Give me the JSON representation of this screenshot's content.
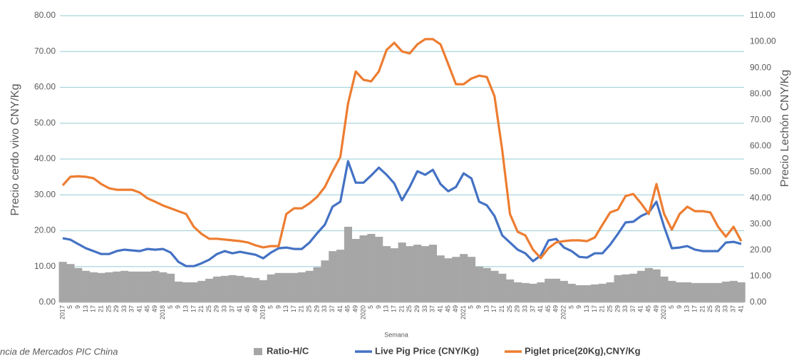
{
  "chart_data": {
    "type": "combo",
    "y_label": "Precio cerdo vivo CNY/Kg",
    "y2_label": "Precio Lechón CNY/Kg",
    "x_label": "Semana",
    "source": "ncia de Mercados PIC China",
    "categories": [
      "2017",
      "5",
      "9",
      "13",
      "17",
      "21",
      "25",
      "29",
      "33",
      "37",
      "41",
      "45",
      "49",
      "2018",
      "5",
      "9",
      "13",
      "17",
      "21",
      "25",
      "29",
      "33",
      "37",
      "41",
      "45",
      "49",
      "2019",
      "5",
      "9",
      "13",
      "17",
      "21",
      "25",
      "29",
      "33",
      "37",
      "41",
      "45",
      "49",
      "2020",
      "5",
      "9",
      "13",
      "17",
      "21",
      "25",
      "29",
      "33",
      "37",
      "41",
      "45",
      "49",
      "2021",
      "5",
      "9",
      "13",
      "17",
      "21",
      "25",
      "29",
      "33",
      "37",
      "41",
      "45",
      "49",
      "2022",
      "5",
      "9",
      "13",
      "17",
      "21",
      "25",
      "29",
      "33",
      "37",
      "41",
      "45",
      "49",
      "2023",
      "5",
      "9",
      "13",
      "17",
      "21",
      "25",
      "29",
      "33",
      "37",
      "41"
    ],
    "series": [
      {
        "name": "Ratio-H/C",
        "type": "area",
        "color": "#a6a6a6",
        "values": [
          11.3,
          10.7,
          9.6,
          8.8,
          8.4,
          8.2,
          8.4,
          8.6,
          8.8,
          8.6,
          8.6,
          8.6,
          8.8,
          8.4,
          8.0,
          5.8,
          5.6,
          5.6,
          6.0,
          6.6,
          7.2,
          7.4,
          7.6,
          7.4,
          7.0,
          6.8,
          6.2,
          7.8,
          8.2,
          8.2,
          8.2,
          8.4,
          8.8,
          9.8,
          11.7,
          14.3,
          14.7,
          21.1,
          17.7,
          18.7,
          19.1,
          18.3,
          15.7,
          15.1,
          16.7,
          15.7,
          16.1,
          15.7,
          16.1,
          13.1,
          12.3,
          12.7,
          13.5,
          12.7,
          10.0,
          9.6,
          8.8,
          8.0,
          6.4,
          5.6,
          5.4,
          5.2,
          5.6,
          6.6,
          6.6,
          6.0,
          5.2,
          4.8,
          4.8,
          5.0,
          5.2,
          5.6,
          7.6,
          7.8,
          8.0,
          8.8,
          9.6,
          9.2,
          7.2,
          6.0,
          5.6,
          5.6,
          5.4,
          5.4,
          5.4,
          5.4,
          5.8,
          6.0,
          5.6
        ]
      },
      {
        "name": "Live Pig Price (CNY/Kg)",
        "type": "line",
        "color": "#4472c4",
        "values": [
          17.9,
          17.5,
          16.3,
          15.1,
          14.3,
          13.5,
          13.5,
          14.3,
          14.7,
          14.5,
          14.3,
          14.9,
          14.7,
          14.9,
          13.9,
          11.3,
          10.1,
          10.1,
          10.9,
          11.9,
          13.5,
          14.3,
          13.7,
          14.1,
          13.7,
          13.3,
          12.3,
          13.9,
          15.1,
          15.3,
          14.9,
          14.9,
          16.7,
          19.3,
          21.7,
          26.7,
          28.1,
          39.4,
          33.4,
          33.4,
          35.4,
          37.6,
          35.6,
          33.2,
          28.5,
          32.2,
          36.6,
          35.6,
          37.0,
          33.0,
          31.0,
          32.2,
          36.0,
          34.6,
          28.1,
          27.1,
          24.1,
          18.7,
          16.7,
          14.7,
          13.7,
          11.5,
          13.1,
          17.3,
          17.7,
          15.3,
          14.3,
          12.7,
          12.5,
          13.7,
          13.7,
          16.1,
          19.1,
          22.3,
          22.5,
          24.1,
          25.1,
          28.1,
          21.1,
          15.1,
          15.3,
          15.7,
          14.7,
          14.3,
          14.3,
          14.3,
          16.7,
          16.9,
          16.3
        ]
      },
      {
        "name": "Piglet price(20Kg),CNY/Kg",
        "type": "line",
        "axis": "y2",
        "color": "#ed7d31",
        "values": [
          44.9,
          48.2,
          48.4,
          48.2,
          47.6,
          45.4,
          43.8,
          43.2,
          43.2,
          43.2,
          42.1,
          39.9,
          38.6,
          37.2,
          36.1,
          35.0,
          33.9,
          29.0,
          26.3,
          24.4,
          24.4,
          24.1,
          23.8,
          23.5,
          23.0,
          21.9,
          21.1,
          21.6,
          21.6,
          33.9,
          36.1,
          36.1,
          38.0,
          40.5,
          44.3,
          50.3,
          55.8,
          76.3,
          88.6,
          85.4,
          84.8,
          88.6,
          96.9,
          99.6,
          96.3,
          95.5,
          99.0,
          101.0,
          101.0,
          99.0,
          91.4,
          83.7,
          83.7,
          85.9,
          87.0,
          86.5,
          79.1,
          58.5,
          33.9,
          27.1,
          25.7,
          20.2,
          17.0,
          20.8,
          23.0,
          23.5,
          23.8,
          23.8,
          23.5,
          24.9,
          29.8,
          34.5,
          35.6,
          40.8,
          41.6,
          38.0,
          33.9,
          45.4,
          33.9,
          27.9,
          33.9,
          36.7,
          35.0,
          35.0,
          34.5,
          29.0,
          25.2,
          29.0,
          23.5
        ]
      }
    ],
    "ylim": [
      0,
      80
    ],
    "yticks": [
      {
        "value": 0,
        "label": "0.00"
      },
      {
        "value": 10,
        "label": "10.00"
      },
      {
        "value": 20,
        "label": "20.00"
      },
      {
        "value": 30,
        "label": "30.00"
      },
      {
        "value": 40,
        "label": "40.00"
      },
      {
        "value": 50,
        "label": "50.00"
      },
      {
        "value": 60,
        "label": "60.00"
      },
      {
        "value": 70,
        "label": "70.00"
      },
      {
        "value": 80,
        "label": "80.00"
      }
    ],
    "y2lim": [
      0,
      110
    ],
    "y2ticks": [
      {
        "value": 0,
        "label": "0.00"
      },
      {
        "value": 10,
        "label": "10.00"
      },
      {
        "value": 20,
        "label": "20.00"
      },
      {
        "value": 30,
        "label": "30.00"
      },
      {
        "value": 40,
        "label": "40.00"
      },
      {
        "value": 50,
        "label": "50.00"
      },
      {
        "value": 60,
        "label": "60.00"
      },
      {
        "value": 70,
        "label": "70.00"
      },
      {
        "value": 80,
        "label": "80.00"
      },
      {
        "value": 90,
        "label": "90.00"
      },
      {
        "value": 100,
        "label": "100.00"
      },
      {
        "value": 110,
        "label": "110.00"
      }
    ],
    "grid": true,
    "legend": "bottom"
  }
}
